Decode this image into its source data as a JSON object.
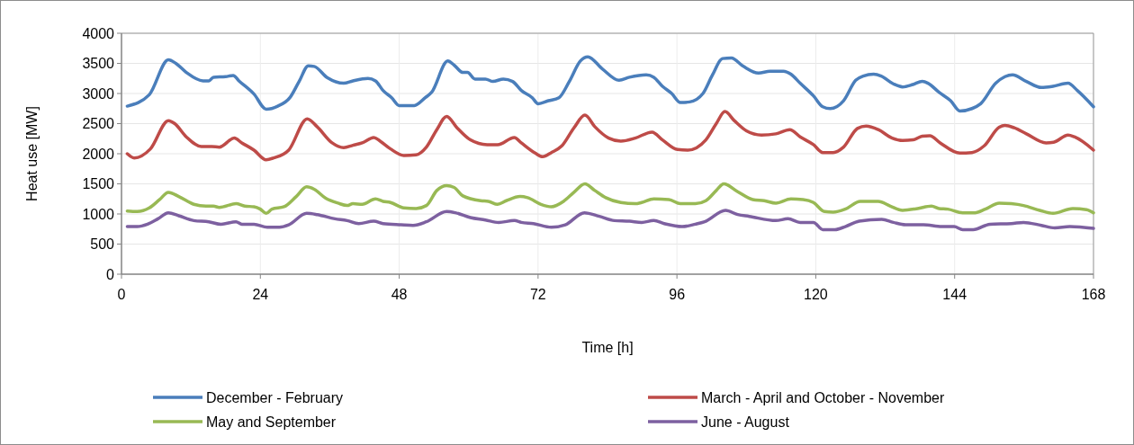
{
  "chart_data": {
    "type": "line",
    "xlabel": "Time [h]",
    "ylabel": "Heat use [MW]",
    "xlim": [
      0,
      168
    ],
    "xticks": [
      0,
      24,
      48,
      72,
      96,
      120,
      144,
      168
    ],
    "ylim": [
      0,
      4000
    ],
    "yticks": [
      0,
      500,
      1000,
      1500,
      2000,
      2500,
      3000,
      3500,
      4000
    ],
    "grid": true,
    "legend": "bottom",
    "marker": "none",
    "line_style": "solid",
    "series": [
      {
        "name": "December - February",
        "color": "#4a7ebb",
        "x": [
          1,
          4.8,
          8.1,
          9.4,
          11.2,
          14.1,
          15.1,
          15.9,
          18,
          19.3,
          20.3,
          22.9,
          25,
          27,
          29.1,
          30.7,
          32.3,
          33.3,
          35.6,
          38.4,
          40,
          42.6,
          43.9,
          45.2,
          46.7,
          48,
          50.6,
          52.5,
          53.6,
          56.4,
          57.5,
          59,
          59.8,
          61.1,
          62.9,
          64.2,
          66,
          67.6,
          69.1,
          71,
          72,
          73.8,
          75.6,
          77.4,
          79.3,
          80.6,
          83.1,
          86,
          87.8,
          90.7,
          92,
          93.5,
          95.1,
          96.6,
          98.2,
          100.5,
          102.1,
          103.9,
          105.4,
          107.5,
          110.1,
          112.1,
          114.4,
          115.7,
          117.3,
          119.6,
          121.2,
          122.5,
          124.8,
          126.9,
          128.2,
          130,
          131.3,
          133.4,
          135,
          136.8,
          138.4,
          139.4,
          141.3,
          143.3,
          144.9,
          147,
          148.5,
          151.1,
          152.7,
          154,
          156.4,
          159,
          161,
          163.6,
          165.2,
          168
        ],
        "values": [
          2790,
          2980,
          3560,
          3500,
          3350,
          3210,
          3210,
          3270,
          3280,
          3300,
          3210,
          2990,
          2740,
          2790,
          2930,
          3200,
          3460,
          3450,
          3260,
          3170,
          3210,
          3250,
          3210,
          3050,
          2930,
          2800,
          2800,
          2930,
          3020,
          3540,
          3470,
          3350,
          3350,
          3240,
          3240,
          3200,
          3240,
          3200,
          3050,
          2930,
          2830,
          2880,
          2930,
          3200,
          3540,
          3610,
          3410,
          3220,
          3270,
          3310,
          3270,
          3120,
          3000,
          2850,
          2860,
          3000,
          3300,
          3580,
          3590,
          3450,
          3340,
          3370,
          3370,
          3320,
          3170,
          2960,
          2780,
          2750,
          2880,
          3220,
          3290,
          3320,
          3290,
          3160,
          3110,
          3150,
          3200,
          3170,
          3020,
          2880,
          2710,
          2750,
          2830,
          3170,
          3280,
          3310,
          3200,
          3100,
          3120,
          3170,
          3050,
          2780
        ]
      },
      {
        "name": "March - April and October - November",
        "color": "#be4b48",
        "x": [
          1,
          2.2,
          5,
          8.1,
          9.2,
          11.2,
          13.8,
          15.6,
          16.9,
          19.5,
          20.8,
          22.9,
          25,
          26.3,
          28.9,
          32.1,
          33.8,
          36.4,
          38.4,
          40,
          41.6,
          43.6,
          44.7,
          46.5,
          48.8,
          50.9,
          52.7,
          54.5,
          56.2,
          58,
          60.3,
          63.2,
          65,
          67.9,
          69.1,
          71.5,
          72.8,
          74.3,
          76.1,
          78.2,
          80.1,
          81.8,
          84.2,
          86.3,
          88.8,
          91.7,
          93.5,
          96.1,
          97.9,
          101,
          102.8,
          104.3,
          105.9,
          108,
          110.6,
          113.1,
          115.5,
          117.3,
          119.6,
          121.2,
          123,
          124.8,
          127.2,
          128.7,
          130.8,
          133.2,
          135,
          136.8,
          138.4,
          139.7,
          141.5,
          144.9,
          147,
          149.1,
          151.7,
          152.7,
          154.3,
          156.4,
          159.8,
          161.1,
          163.6,
          164.7,
          168
        ],
        "values": [
          2000,
          1930,
          2080,
          2550,
          2500,
          2280,
          2120,
          2120,
          2110,
          2260,
          2180,
          2060,
          1900,
          1930,
          2060,
          2580,
          2450,
          2180,
          2100,
          2140,
          2180,
          2270,
          2210,
          2080,
          1970,
          1980,
          2110,
          2400,
          2620,
          2430,
          2230,
          2150,
          2150,
          2270,
          2180,
          2010,
          1950,
          2020,
          2130,
          2430,
          2640,
          2450,
          2260,
          2210,
          2260,
          2360,
          2230,
          2070,
          2060,
          2230,
          2500,
          2700,
          2550,
          2380,
          2310,
          2330,
          2400,
          2280,
          2150,
          2020,
          2020,
          2110,
          2420,
          2460,
          2400,
          2260,
          2220,
          2230,
          2290,
          2300,
          2180,
          2010,
          2020,
          2130,
          2440,
          2470,
          2430,
          2330,
          2180,
          2190,
          2310,
          2280,
          2060
        ]
      },
      {
        "name": "May and September",
        "color": "#98b954",
        "x": [
          1,
          2.7,
          4.8,
          6.6,
          8.1,
          9.9,
          12.5,
          14.6,
          15.9,
          16.9,
          19.8,
          21.3,
          22.9,
          24,
          25,
          26,
          28.1,
          30.2,
          32,
          33.3,
          35.3,
          37.4,
          39,
          40,
          41.6,
          43.9,
          45.2,
          46.5,
          48.8,
          50.9,
          52.7,
          54.5,
          56.2,
          57.5,
          59,
          62.1,
          63.4,
          65,
          66.5,
          68.9,
          70.2,
          72.5,
          74.3,
          76.4,
          78.2,
          80.1,
          81.8,
          83.7,
          86.3,
          88.8,
          89.9,
          92,
          94.6,
          96.6,
          99.2,
          101,
          102.8,
          104.1,
          106.5,
          109.1,
          111.1,
          113.1,
          115.7,
          117.8,
          119.6,
          121.5,
          123,
          125.1,
          127.7,
          129,
          130.8,
          132.9,
          135,
          137.6,
          140,
          141.3,
          142.8,
          145.4,
          147.5,
          149.3,
          151.7,
          153.8,
          155.9,
          158.7,
          161,
          164.4,
          166.8,
          168
        ],
        "values": [
          1050,
          1040,
          1100,
          1240,
          1360,
          1290,
          1160,
          1130,
          1130,
          1110,
          1170,
          1130,
          1120,
          1080,
          1010,
          1080,
          1120,
          1290,
          1450,
          1410,
          1260,
          1180,
          1140,
          1170,
          1160,
          1250,
          1210,
          1190,
          1100,
          1090,
          1140,
          1390,
          1470,
          1440,
          1300,
          1220,
          1210,
          1160,
          1220,
          1290,
          1270,
          1160,
          1120,
          1210,
          1360,
          1500,
          1390,
          1270,
          1190,
          1170,
          1190,
          1250,
          1240,
          1170,
          1170,
          1220,
          1390,
          1500,
          1370,
          1240,
          1220,
          1180,
          1250,
          1240,
          1190,
          1040,
          1030,
          1080,
          1210,
          1210,
          1210,
          1130,
          1060,
          1090,
          1130,
          1090,
          1080,
          1020,
          1020,
          1080,
          1180,
          1170,
          1140,
          1060,
          1010,
          1090,
          1070,
          1020
        ]
      },
      {
        "name": "June - August",
        "color": "#7d60a0",
        "x": [
          1,
          2.7,
          4.5,
          6.3,
          8.1,
          9.9,
          12.5,
          15.1,
          17.2,
          19.8,
          20.8,
          22.9,
          25.2,
          27.3,
          28.9,
          32,
          33.8,
          36.9,
          39,
          41,
          43.6,
          45.2,
          48.3,
          50.4,
          52.7,
          56.2,
          57.7,
          60.3,
          62.9,
          65.2,
          67.9,
          69.1,
          71.2,
          74.3,
          76.7,
          80,
          82.6,
          85.2,
          87.8,
          89.9,
          92,
          93.8,
          96.9,
          99.2,
          100.8,
          104.4,
          106.5,
          108.5,
          113.1,
          115.2,
          117.3,
          119.6,
          121.2,
          123.3,
          125.1,
          127.5,
          131.4,
          133.4,
          135.5,
          138.6,
          141.8,
          143.9,
          145.4,
          147.2,
          150.1,
          153.8,
          155.9,
          159,
          161.3,
          163.9,
          168
        ],
        "values": [
          790,
          790,
          830,
          920,
          1020,
          970,
          890,
          870,
          830,
          870,
          830,
          830,
          780,
          780,
          820,
          1010,
          990,
          920,
          890,
          840,
          880,
          840,
          820,
          810,
          870,
          1040,
          1020,
          940,
          900,
          860,
          890,
          860,
          840,
          780,
          820,
          1020,
          960,
          890,
          880,
          860,
          890,
          840,
          790,
          830,
          870,
          1060,
          990,
          960,
          890,
          920,
          860,
          860,
          740,
          740,
          790,
          880,
          910,
          860,
          820,
          820,
          790,
          790,
          740,
          740,
          830,
          840,
          860,
          810,
          770,
          790,
          760
        ]
      }
    ]
  }
}
